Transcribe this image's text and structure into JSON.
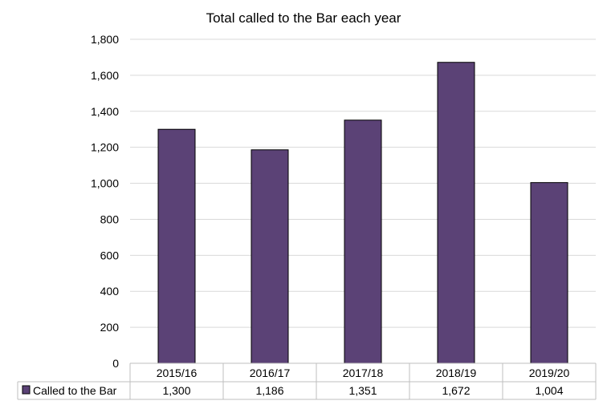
{
  "chart_data": {
    "type": "bar",
    "title": "Total called to the Bar each year",
    "xlabel": "",
    "ylabel": "",
    "categories": [
      "2015/16",
      "2016/17",
      "2017/18",
      "2018/19",
      "2019/20"
    ],
    "series": [
      {
        "name": "Called to the Bar",
        "values": [
          1300,
          1186,
          1351,
          1672,
          1004
        ],
        "value_labels": [
          "1,300",
          "1,186",
          "1,351",
          "1,672",
          "1,004"
        ],
        "color": "#5b4276"
      }
    ],
    "ylim": [
      0,
      1800
    ],
    "yticks": [
      0,
      200,
      400,
      600,
      800,
      1000,
      1200,
      1400,
      1600,
      1800
    ],
    "ytick_labels": [
      "0",
      "200",
      "400",
      "600",
      "800",
      "1,000",
      "1,200",
      "1,400",
      "1,600",
      "1,800"
    ],
    "grid": true,
    "legend": "data-table",
    "gridline_color": "#d9d9d9",
    "axis_color": "#bfbfbf"
  }
}
